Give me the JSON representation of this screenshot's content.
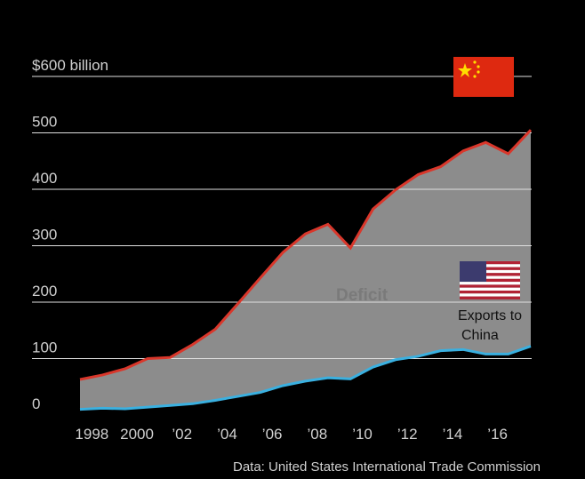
{
  "chart_data": {
    "type": "area",
    "x": [
      1997,
      1998,
      1999,
      2000,
      2001,
      2002,
      2003,
      2004,
      2005,
      2006,
      2007,
      2008,
      2009,
      2010,
      2011,
      2012,
      2013,
      2014,
      2015,
      2016,
      2017
    ],
    "series": [
      {
        "name": "Imports from China",
        "color": "#d9372b",
        "values": [
          63,
          71,
          82,
          100,
          102,
          125,
          152,
          197,
          243,
          288,
          321,
          338,
          296,
          365,
          399,
          426,
          440,
          468,
          483,
          463,
          505
        ]
      },
      {
        "name": "Exports to China",
        "color": "#3ab0e0",
        "values": [
          10,
          12,
          11,
          14,
          17,
          20,
          26,
          33,
          40,
          52,
          60,
          66,
          64,
          85,
          98,
          104,
          114,
          116,
          108,
          108,
          122
        ]
      }
    ],
    "area_label": "Deficit",
    "area_color": "#8c8c8c",
    "xlim": [
      1997,
      2017
    ],
    "ylim": [
      0,
      600
    ],
    "yticks": [
      0,
      100,
      200,
      300,
      400,
      500,
      {
        "value": 600,
        "label": "$600 billion"
      }
    ],
    "xticks": [
      1998,
      2000,
      {
        "value": 2002,
        "label": "’02"
      },
      {
        "value": 2004,
        "label": "’04"
      },
      {
        "value": 2006,
        "label": "’06"
      },
      {
        "value": 2008,
        "label": "’08"
      },
      {
        "value": 2010,
        "label": "’10"
      },
      {
        "value": 2012,
        "label": "’12"
      },
      {
        "value": 2014,
        "label": "’14"
      },
      {
        "value": 2016,
        "label": "’16"
      }
    ],
    "annotations": [
      "Exports to",
      "China"
    ],
    "source": "Data: United States International Trade Commission",
    "grid": true
  }
}
